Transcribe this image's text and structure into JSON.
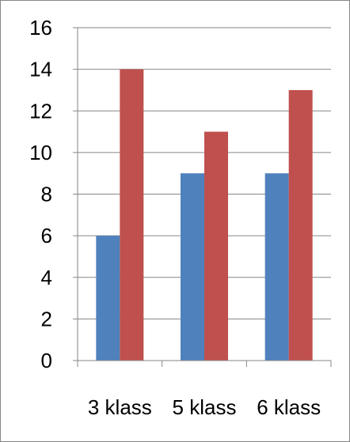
{
  "chart_data": {
    "type": "bar",
    "categories": [
      "3 klass",
      "5 klass",
      "6 klass"
    ],
    "series": [
      {
        "values": [
          6,
          9,
          9
        ],
        "color": "#4F81BD"
      },
      {
        "values": [
          14,
          11,
          13
        ],
        "color": "#C0504D"
      }
    ],
    "ylim": [
      0,
      16
    ],
    "yticks": [
      0,
      2,
      4,
      6,
      8,
      10,
      12,
      14,
      16
    ],
    "ytick_labels": [
      "0",
      "2",
      "4",
      "6",
      "8",
      "10",
      "12",
      "14",
      "16"
    ],
    "grid": true,
    "legend": "none"
  },
  "colors": {
    "gridline": "#868686",
    "axis": "#868686",
    "border": "#868686"
  }
}
